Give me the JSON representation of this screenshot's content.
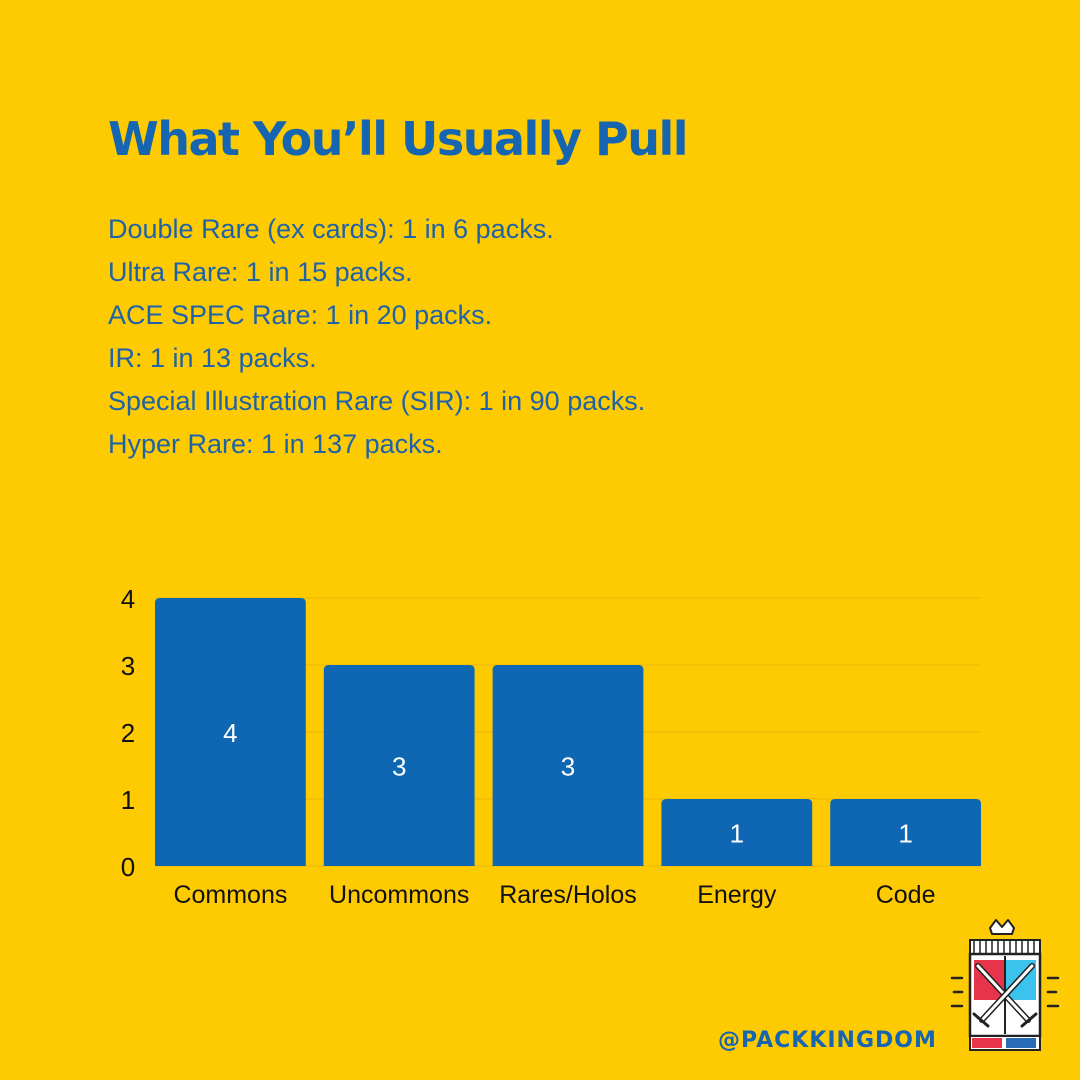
{
  "header": {
    "title": "What You’ll Usually Pull"
  },
  "odds": [
    "Double Rare (ex cards): 1 in 6 packs.",
    "Ultra Rare: 1 in 15 packs.",
    "ACE SPEC Rare: 1 in 20 packs.",
    "IR: 1 in 13 packs.",
    "Special Illustration Rare (SIR): 1 in 90 packs.",
    "Hyper Rare: 1 in 137 packs."
  ],
  "chart_data": {
    "type": "bar",
    "title": "",
    "xlabel": "",
    "ylabel": "",
    "categories": [
      "Commons",
      "Uncommons",
      "Rares/Holos",
      "Energy",
      "Code"
    ],
    "values": [
      4,
      3,
      3,
      1,
      1
    ],
    "data_labels": [
      "4",
      "3",
      "3",
      "1",
      "1"
    ],
    "ylim": [
      0,
      4
    ],
    "yticks": [
      0,
      1,
      2,
      3,
      4
    ],
    "grid": true,
    "legend": "none",
    "bar_color": "#0F67B4",
    "label_color": "#FFFFFF",
    "grid_color": "#E8B800"
  },
  "footer": {
    "handle": "@PACKKINGDOM"
  },
  "colors": {
    "background": "#FECA02",
    "accent": "#1565B0"
  },
  "logo": {
    "icon": "pack-kingdom-crest-icon"
  }
}
